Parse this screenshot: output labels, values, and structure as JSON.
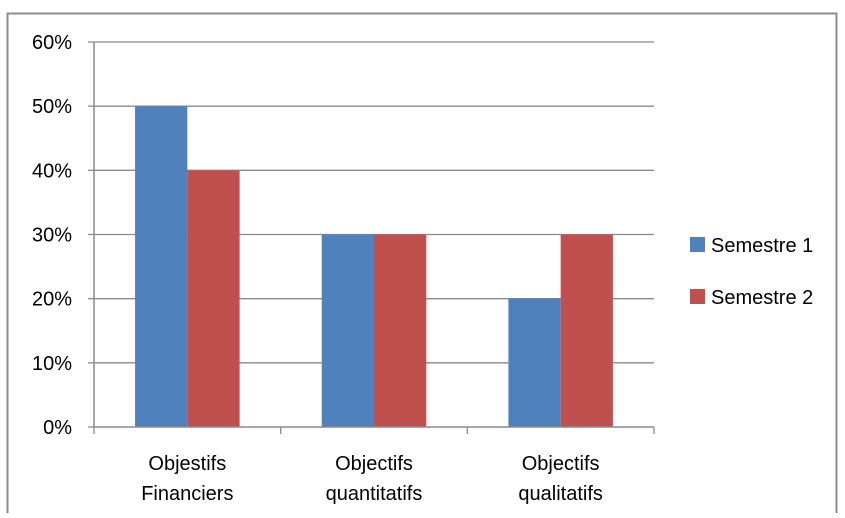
{
  "chart_data": {
    "type": "bar",
    "categories": [
      [
        "Objestifs",
        "Financiers"
      ],
      [
        "Objectifs",
        "quantitatifs"
      ],
      [
        "Objectifs",
        "qualitatifs"
      ]
    ],
    "series": [
      {
        "name": "Semestre 1",
        "values": [
          50,
          30,
          20
        ],
        "color": "#4F81BD"
      },
      {
        "name": "Semestre 2",
        "values": [
          40,
          30,
          30
        ],
        "color": "#C0504D"
      }
    ],
    "y_ticks": [
      "0%",
      "10%",
      "20%",
      "30%",
      "40%",
      "50%",
      "60%"
    ],
    "ylim": [
      0,
      60
    ],
    "unit": "%",
    "grid": true,
    "legend_position": "right",
    "title": "",
    "xlabel": "",
    "ylabel": ""
  }
}
